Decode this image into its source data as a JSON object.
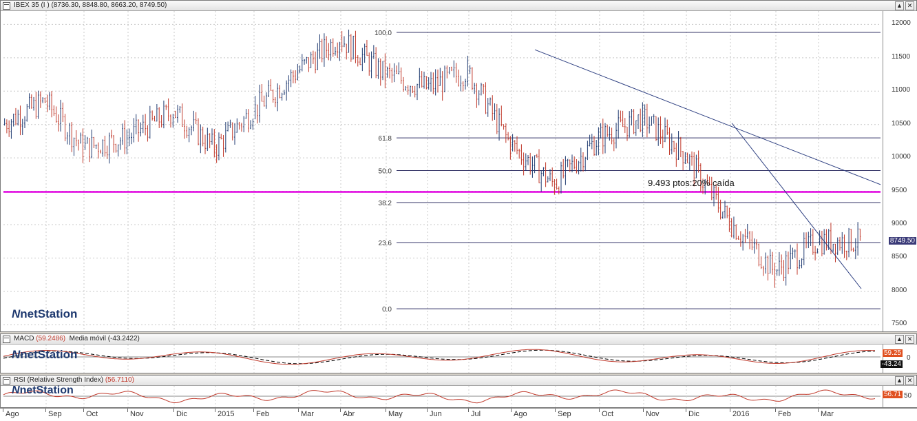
{
  "main_pane": {
    "title": "IBEX 35 (I )",
    "ohlc": "(8736.30, 8848.80, 8663.20, 8749.50)",
    "price_tag": "8749.50",
    "y_labels": [
      "12000",
      "11500",
      "11000",
      "10500",
      "10000",
      "9500",
      "9000",
      "8500",
      "8000",
      "7500"
    ],
    "fib_labels": [
      "100.0",
      "61.8",
      "50.0",
      "38.2",
      "23.6",
      "0.0"
    ],
    "annotation": "9.493 ptos:20% caída",
    "logo": "netStation"
  },
  "macd_pane": {
    "title": "MACD",
    "value": "(59.2486)",
    "ma_label": "Media móvil",
    "ma_value": "(-43.2422)",
    "tag_macd": "59.25",
    "tag_signal": "-43.24",
    "zero_label": "0",
    "logo": "netStation"
  },
  "rsi_pane": {
    "title": "RSI (Relative Strength Index)",
    "value": "(56.7110)",
    "tag_rsi": "56.71",
    "level_label": "50",
    "logo": "netStation"
  },
  "x_axis": {
    "months": [
      "Ago",
      "Sep",
      "Oct",
      "Nov",
      "Dic",
      "2015",
      "Feb",
      "Mar",
      "Abr",
      "May",
      "Jun",
      "Jul",
      "Ago",
      "Sep",
      "Oct",
      "Nov",
      "Dic",
      "2016",
      "Feb",
      "Mar"
    ]
  },
  "window_buttons": {
    "up": "▲",
    "close": "✕"
  },
  "colors": {
    "support_line": "#e000e0",
    "candle": "#c0392b",
    "fib_line": "#333366",
    "trend_line": "#2c3e80",
    "macd": "#c0392b",
    "signal": "#000000",
    "rsi": "#c0392b",
    "price_tag_bg": "#3a3a78",
    "macd_tag_bg": "#e05020"
  },
  "chart_data": [
    {
      "type": "candlestick",
      "title": "IBEX 35",
      "ylim": [
        7400,
        12200
      ],
      "y_ticks": [
        7500,
        8000,
        8500,
        9000,
        9500,
        10000,
        10500,
        11000,
        11500,
        12000
      ],
      "x": [
        "Ago",
        "Sep",
        "Oct",
        "Nov",
        "Dic",
        "2015",
        "Feb",
        "Mar",
        "Abr",
        "May",
        "Jun",
        "Jul",
        "Ago",
        "Sep",
        "Oct",
        "Nov",
        "Dic",
        "2016",
        "Feb",
        "Mar"
      ],
      "monthly_close": [
        10500,
        10850,
        10150,
        10300,
        10700,
        10150,
        10700,
        11300,
        11800,
        11250,
        11050,
        11300,
        10200,
        9600,
        10300,
        10600,
        10050,
        9050,
        8300,
        8750
      ],
      "last": {
        "open": 8736.3,
        "high": 8848.8,
        "low": 8663.2,
        "close": 8749.5
      },
      "fib_levels": [
        {
          "label": "100.0",
          "value": 11880
        },
        {
          "label": "61.8",
          "value": 10300
        },
        {
          "label": "50.0",
          "value": 9810
        },
        {
          "label": "38.2",
          "value": 9330
        },
        {
          "label": "23.6",
          "value": 8730
        },
        {
          "label": "0.0",
          "value": 7740
        }
      ],
      "support_line": 9490,
      "annotation": "9.493 ptos:20% caída"
    },
    {
      "type": "line",
      "title": "MACD",
      "series": [
        {
          "name": "MACD",
          "last": 59.25
        },
        {
          "name": "Media móvil",
          "last": -43.24
        }
      ]
    },
    {
      "type": "line",
      "title": "RSI (Relative Strength Index)",
      "series": [
        {
          "name": "RSI",
          "last": 56.71
        }
      ],
      "level": 50
    }
  ]
}
